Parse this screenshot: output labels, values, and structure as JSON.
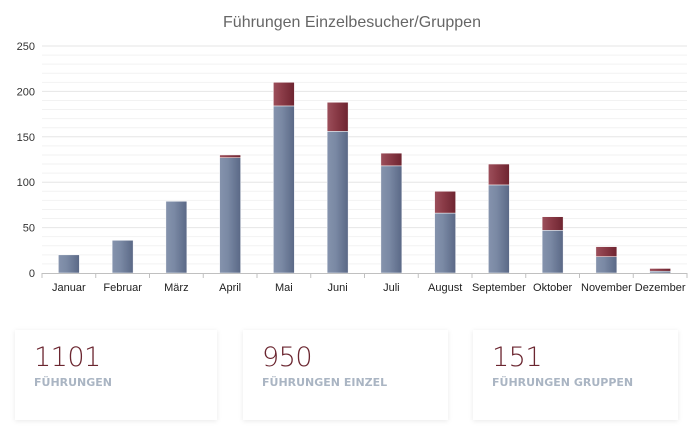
{
  "chart_data": {
    "type": "bar",
    "stacked": true,
    "title": "Führungen Einzelbesucher/Gruppen",
    "xlabel": "",
    "ylabel": "",
    "ylim": [
      0,
      250
    ],
    "yticks": [
      0,
      50,
      100,
      150,
      200,
      250
    ],
    "grid": true,
    "categories": [
      "Januar",
      "Februar",
      "März",
      "April",
      "Mai",
      "Juni",
      "Juli",
      "August",
      "September",
      "Oktober",
      "November",
      "Dezember"
    ],
    "series": [
      {
        "name": "Einzel",
        "color": "#6e7d98",
        "values": [
          20,
          36,
          79,
          127,
          184,
          156,
          118,
          66,
          97,
          47,
          18,
          2
        ]
      },
      {
        "name": "Gruppen",
        "color": "#7f2f3b",
        "values": [
          0,
          0,
          0,
          3,
          26,
          32,
          14,
          24,
          23,
          15,
          11,
          3
        ]
      }
    ]
  },
  "stats": [
    {
      "value": "1101",
      "label": "FÜHRUNGEN"
    },
    {
      "value": "950",
      "label": "FÜHRUNGEN EINZEL"
    },
    {
      "value": "151",
      "label": "FÜHRUNGEN GRUPPEN"
    }
  ]
}
